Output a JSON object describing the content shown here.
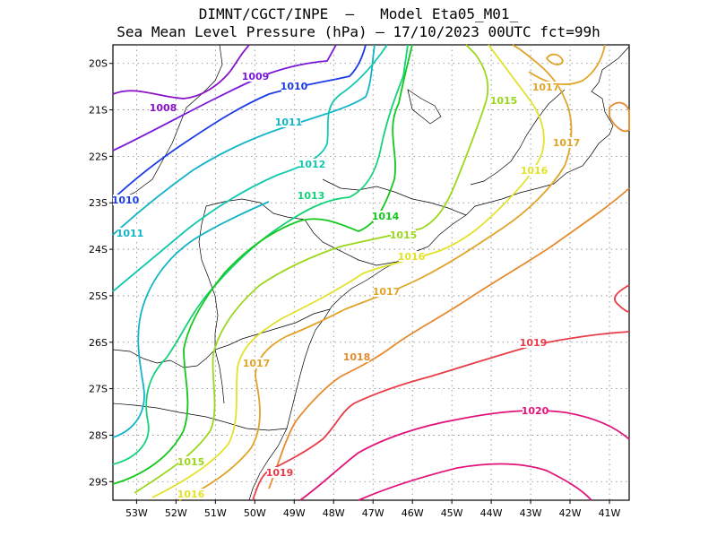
{
  "title_line1": "DIMNT/CGCT/INPE  –   Model Eta05_M01_",
  "title_line2": "Sea Mean Level Pressure (hPa) – 17/10/2023 00UTC fct=99h",
  "lat_ticks": [
    "20S",
    "21S",
    "22S",
    "23S",
    "24S",
    "25S",
    "26S",
    "27S",
    "28S",
    "29S"
  ],
  "lon_ticks": [
    "53W",
    "52W",
    "51W",
    "50W",
    "49W",
    "48W",
    "47W",
    "46W",
    "45W",
    "44W",
    "43W",
    "42W",
    "41W"
  ],
  "map_extent": {
    "lon_min": -53.6,
    "lon_max": -40.5,
    "lat_min": -29.4,
    "lat_max": -19.6
  },
  "grid": true,
  "contour_labels": [
    "1008",
    "1009",
    "1010",
    "1010",
    "1011",
    "1011",
    "1012",
    "1013",
    "1014",
    "1015",
    "1015",
    "1015",
    "1016",
    "1016",
    "1016",
    "1017",
    "1017",
    "1017",
    "1017",
    "1018",
    "1019",
    "1019",
    "1020"
  ],
  "contour_colors": {
    "1008": "#8a10c8",
    "1009": "#7a18d8",
    "1010": "#1e3ce6",
    "1011": "#12b4c8",
    "1012": "#10c8b0",
    "1013": "#14d27a",
    "1014": "#12c81a",
    "1015": "#9ad81c",
    "1016": "#e2e22a",
    "1017": "#e0a428",
    "1018": "#e68a30",
    "1019": "#e83c48",
    "1020": "#e0147a"
  }
}
